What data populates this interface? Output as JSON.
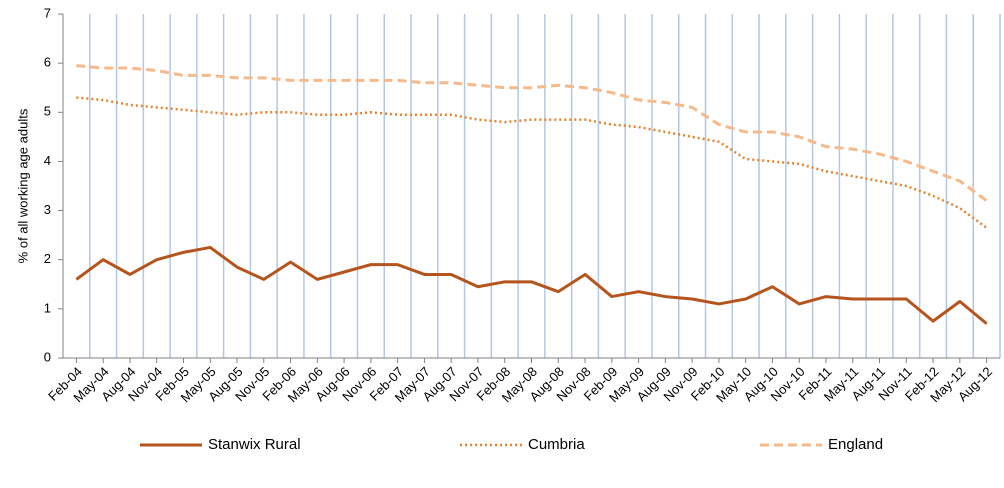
{
  "chart_data": {
    "type": "line",
    "y_label": "% of all working age adults",
    "categories": [
      "Feb-04",
      "May-04",
      "Aug-04",
      "Nov-04",
      "Feb-05",
      "May-05",
      "Aug-05",
      "Nov-05",
      "Feb-06",
      "May-06",
      "Aug-06",
      "Nov-06",
      "Feb-07",
      "May-07",
      "Aug-07",
      "Nov-07",
      "Feb-08",
      "May-08",
      "Aug-08",
      "Nov-08",
      "Feb-09",
      "May-09",
      "Aug-09",
      "Nov-09",
      "Feb-10",
      "May-10",
      "Aug-10",
      "Nov-10",
      "Feb-11",
      "May-11",
      "Aug-11",
      "Nov-11",
      "Feb-12",
      "May-12",
      "Aug-12"
    ],
    "series": [
      {
        "name": "Stanwix Rural",
        "color": "#b5541c",
        "dash": "solid",
        "values": [
          1.6,
          2.0,
          1.7,
          2.0,
          2.15,
          2.25,
          1.85,
          1.6,
          1.95,
          1.6,
          1.75,
          1.9,
          1.9,
          1.7,
          1.7,
          1.45,
          1.55,
          1.55,
          1.35,
          1.7,
          1.25,
          1.35,
          1.25,
          1.2,
          1.1,
          1.2,
          1.45,
          1.1,
          1.25,
          1.2,
          1.2,
          1.2,
          0.75,
          1.15,
          0.7
        ]
      },
      {
        "name": "Cumbria",
        "color": "#e5822b",
        "dash": "dotted",
        "values": [
          5.3,
          5.25,
          5.15,
          5.1,
          5.05,
          5.0,
          4.95,
          5.0,
          5.0,
          4.95,
          4.95,
          5.0,
          4.95,
          4.95,
          4.95,
          4.85,
          4.8,
          4.85,
          4.85,
          4.85,
          4.75,
          4.7,
          4.6,
          4.5,
          4.4,
          4.05,
          4.0,
          3.95,
          3.8,
          3.7,
          3.6,
          3.5,
          3.3,
          3.05,
          2.65
        ]
      },
      {
        "name": "England",
        "color": "#f6b98a",
        "dash": "dashed",
        "values": [
          5.95,
          5.9,
          5.9,
          5.85,
          5.75,
          5.75,
          5.7,
          5.7,
          5.65,
          5.65,
          5.65,
          5.65,
          5.65,
          5.6,
          5.6,
          5.55,
          5.5,
          5.5,
          5.55,
          5.5,
          5.4,
          5.25,
          5.2,
          5.1,
          4.75,
          4.6,
          4.6,
          4.5,
          4.3,
          4.25,
          4.15,
          4.0,
          3.8,
          3.6,
          3.2
        ]
      }
    ],
    "ylim": [
      0,
      7
    ],
    "yticks": [
      0,
      1,
      2,
      3,
      4,
      5,
      6,
      7
    ],
    "grid": "x",
    "grid_color": "#b4c7e7",
    "legend": "bottom"
  }
}
